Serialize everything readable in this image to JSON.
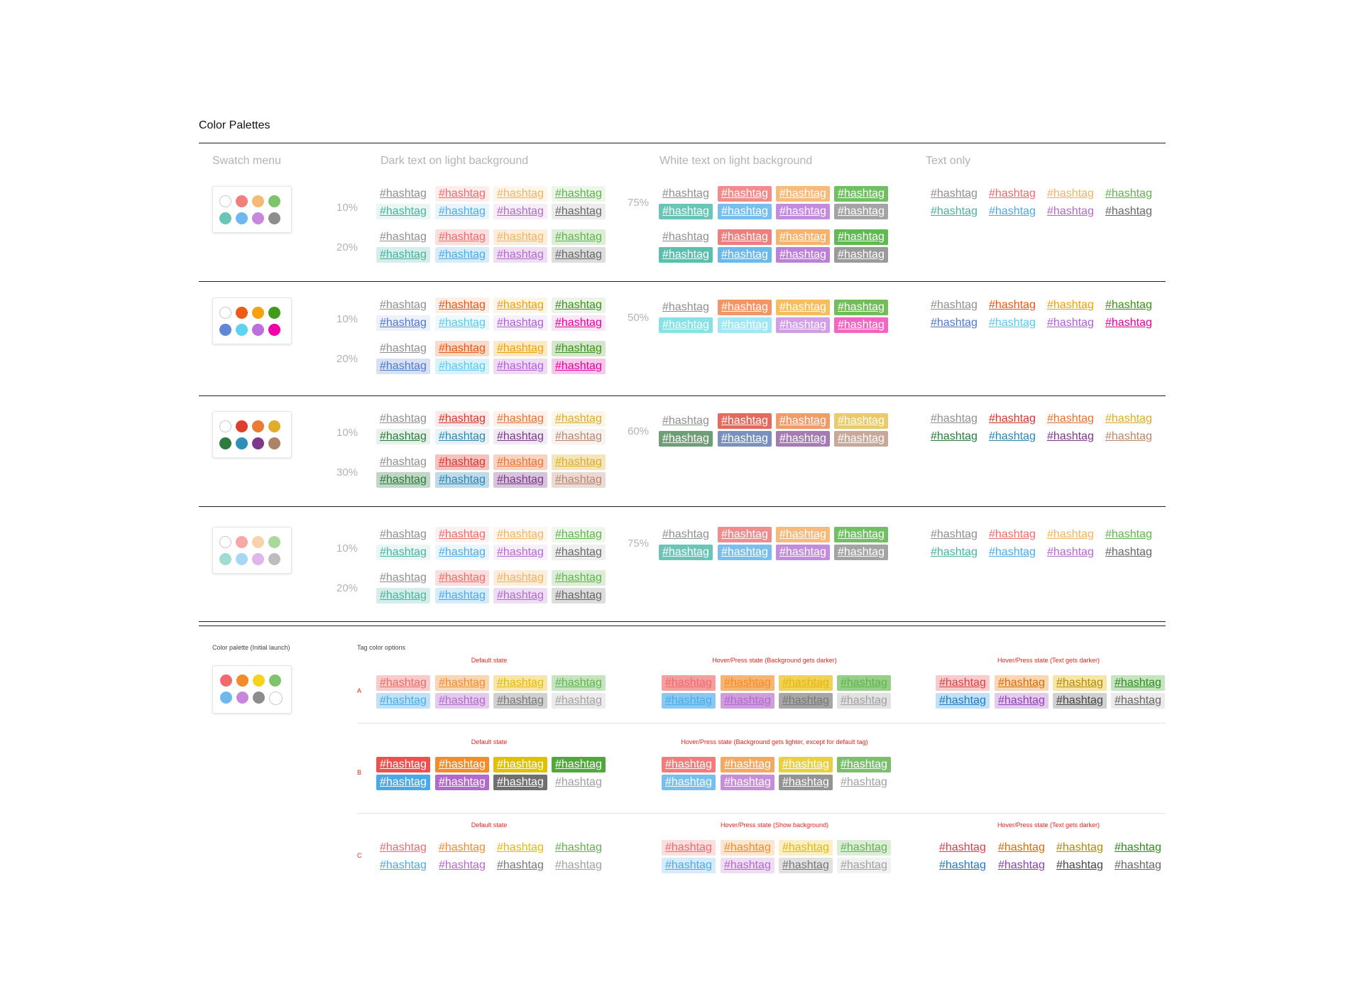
{
  "page_title": "Color Palettes",
  "tag_text": "#hashtag",
  "headers": {
    "swatch_menu": "Swatch menu",
    "dark_text": "Dark text on light background",
    "white_text": "White text on light background",
    "text_only": "Text only"
  },
  "bottom": {
    "palette_title": "Color palette (Initial launch)",
    "tag_options_title": "Tag color options"
  },
  "palettes": [
    {
      "swatches": [
        "#d9d9d9",
        "#f07f7d",
        "#f5ba74",
        "#7fc46a",
        "#69c6b5",
        "#6db9ee",
        "#c687dc",
        "#8d8d8d"
      ],
      "text": [
        "#8f8f8f",
        "#ee6b6b",
        "#f2b25f",
        "#5fb34a",
        "#46b39f",
        "#4aaae8",
        "#b368cc",
        "#666666"
      ],
      "white_fill": [
        "#ee7f7f",
        "#f5b36d",
        "#62b852",
        "#5bbfae",
        "#6ab8ec",
        "#bd7fd8",
        "#9a9a9a"
      ],
      "dark": [
        {
          "pct": "10%",
          "alpha": 0.12
        },
        {
          "pct": "20%",
          "alpha": 0.22
        }
      ],
      "white": {
        "pct": "75%",
        "alpha": 0.9,
        "alpha2": 1.0
      }
    },
    {
      "swatches": [
        "#d9d9d9",
        "#ef5b14",
        "#f6a10e",
        "#3f9b19",
        "#5f87d6",
        "#5fd2ef",
        "#bb70dc",
        "#f000a6"
      ],
      "text": [
        "#8f8f8f",
        "#e8560f",
        "#f0a000",
        "#3a9117",
        "#4f78cc",
        "#57c8ec",
        "#b05ed8",
        "#e4009c"
      ],
      "white_fill": [
        "#f19060",
        "#f5bb55",
        "#6bb852",
        "#7fe0e4",
        "#9be6f4",
        "#d09ae6",
        "#f25dbf"
      ],
      "dark": [
        {
          "pct": "10%",
          "alpha": 0.1
        },
        {
          "pct": "20%",
          "alpha": 0.22
        }
      ],
      "white": {
        "pct": "50%",
        "alpha": 0.95,
        "alpha2": 0.95
      }
    },
    {
      "swatches": [
        "#d9d9d9",
        "#df3d2e",
        "#ea7a34",
        "#e0ad2a",
        "#2f7a3e",
        "#2e8fb8",
        "#7d3a8c",
        "#ad826b"
      ],
      "text": [
        "#8f8f8f",
        "#d9342a",
        "#e97130",
        "#ddaa24",
        "#2a7a3b",
        "#2a86b3",
        "#7a3889",
        "#b8866d"
      ],
      "white_fill": [
        "#e46a60",
        "#f09b6a",
        "#ebca6b",
        "#6e9e76",
        "#7a90be",
        "#a67bb4",
        "#c7a89a"
      ],
      "dark": [
        {
          "pct": "10%",
          "alpha": 0.1
        },
        {
          "pct": "30%",
          "alpha": 0.3
        }
      ],
      "white": {
        "pct": "60%",
        "alpha": 1.0,
        "alpha2": 1.0
      }
    },
    {
      "swatches": [
        "#d9d9d9",
        "#f5a8a6",
        "#f7d3ac",
        "#a9d99d",
        "#9fddd3",
        "#a8d7f3",
        "#e0b4ed",
        "#bdbdbd"
      ],
      "text": [
        "#8f8f8f",
        "#ee6b6b",
        "#f2b25f",
        "#5fb34a",
        "#46b39f",
        "#4aaae8",
        "#b368cc",
        "#666666"
      ],
      "white_fill": [
        "#ee7f7f",
        "#f5b36d",
        "#62b852",
        "#5bbfae",
        "#6ab8ec",
        "#bd7fd8",
        "#9a9a9a"
      ],
      "dark": [
        {
          "pct": "10%",
          "alpha": 0.1
        },
        {
          "pct": "20%",
          "alpha": 0.22
        }
      ],
      "white": {
        "pct": "75%",
        "alpha": 0.9,
        "alpha2": 0.9
      }
    }
  ],
  "launch_swatches": [
    "#f06b6b",
    "#f28c28",
    "#f7d21c",
    "#7fc46a",
    "#6db9ee",
    "#c687dc",
    "#8d8d8d",
    "#d9d9d9"
  ],
  "options": [
    {
      "letter": "A",
      "groups": [
        {
          "header": "Default state",
          "style": "tinted",
          "bg_alpha": 0.35,
          "colors": [
            "#ee6b6b",
            "#f28c28",
            "#e8b800",
            "#5fb34a",
            "#4aaae8",
            "#b368cc",
            "#777777",
            "#a0a0a0"
          ]
        },
        {
          "header": "Hover/Press state (Background gets darker)",
          "style": "tinted",
          "bg_alpha": 0.65,
          "colors": [
            "#ee6b6b",
            "#f28c28",
            "#e8b800",
            "#5fb34a",
            "#4aaae8",
            "#b368cc",
            "#777777",
            "#a0a0a0"
          ]
        },
        {
          "header": "Hover/Press state (Text gets darker)",
          "style": "tinted",
          "bg_alpha": 0.35,
          "colors": [
            "#d8404a",
            "#d96b05",
            "#b28900",
            "#2e8a1f",
            "#1f79c0",
            "#8f3fb0",
            "#444444",
            "#666666"
          ],
          "bg_colors": [
            "#ee6b6b",
            "#f28c28",
            "#e8b800",
            "#5fb34a",
            "#4aaae8",
            "#b368cc",
            "#777777",
            "#a0a0a0"
          ]
        }
      ]
    },
    {
      "letter": "B",
      "groups": [
        {
          "header": "Default state",
          "style": "solid",
          "bg_alpha": 1.0,
          "colors": [
            "#ee4f4f",
            "#f28c28",
            "#e0c000",
            "#4fa83a",
            "#4aaae8",
            "#b368cc",
            "#6f6f6f",
            "#a0a0a0"
          ]
        },
        {
          "header": "Hover/Press state (Background gets lighter, except for default tag)",
          "style": "solid",
          "bg_alpha": 0.75,
          "colors": [
            "#ee4f4f",
            "#f28c28",
            "#e0c000",
            "#4fa83a",
            "#4aaae8",
            "#b368cc",
            "#6f6f6f",
            "#a0a0a0"
          ]
        }
      ]
    },
    {
      "letter": "C",
      "groups": [
        {
          "header": "Default state",
          "style": "text",
          "bg_alpha": 0,
          "colors": [
            "#ee6b6b",
            "#f28c28",
            "#e8b800",
            "#5fb34a",
            "#4aaae8",
            "#b368cc",
            "#777777",
            "#a0a0a0"
          ]
        },
        {
          "header": "Hover/Press state (Show background)",
          "style": "tinted",
          "bg_alpha": 0.22,
          "colors": [
            "#ee6b6b",
            "#f28c28",
            "#e8b800",
            "#5fb34a",
            "#4aaae8",
            "#b368cc",
            "#777777",
            "#a0a0a0"
          ]
        },
        {
          "header": "Hover/Press state (Text gets darker)",
          "style": "text",
          "bg_alpha": 0,
          "colors": [
            "#d8404a",
            "#d96b05",
            "#b28900",
            "#2e8a1f",
            "#1f79c0",
            "#8f3fb0",
            "#444444",
            "#666666"
          ]
        }
      ]
    }
  ]
}
